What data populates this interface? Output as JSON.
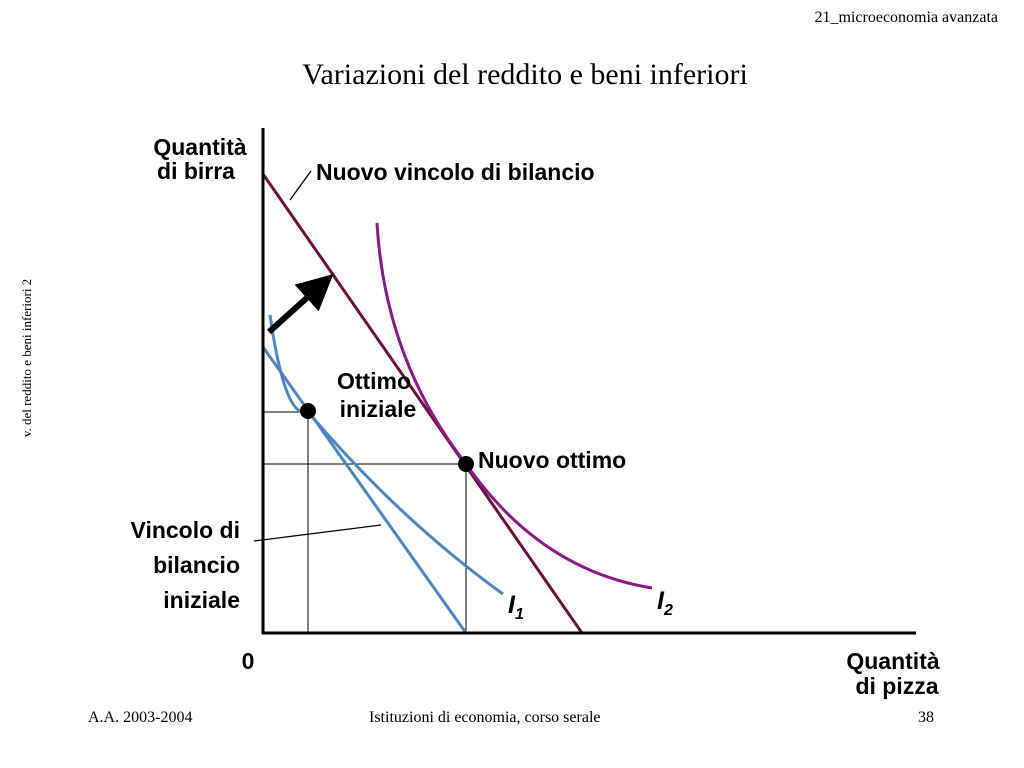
{
  "header": {
    "course": "21_microeconomia avanzata",
    "title": "Variazioni del reddito e beni inferiori"
  },
  "side_note": "v. del reddito e beni inferiori 2",
  "diagram": {
    "y_axis_label": [
      "Quantità",
      "di birra"
    ],
    "x_axis_label": [
      "Quantità",
      "di pizza"
    ],
    "origin_label": "0",
    "new_budget_label": "Nuovo vincolo di bilancio",
    "initial_optimum_label": [
      "Ottimo",
      "iniziale"
    ],
    "new_optimum_label": "Nuovo ottimo",
    "initial_budget_label": [
      "Vincolo di",
      "bilancio",
      "iniziale"
    ],
    "curve_i1": {
      "letter": "I",
      "subscript": "1"
    },
    "curve_i2": {
      "letter": "I",
      "subscript": "2"
    },
    "colors": {
      "initial_budget": "#4f86c0",
      "indifference_i1": "#4f86c0",
      "new_budget": "#6b0f3f",
      "indifference_i2": "#8b1a8b",
      "axes": "#000000",
      "shift_arrow": "#000000"
    }
  },
  "footer": {
    "left": "A.A. 2003-2004",
    "center": "Istituzioni di economia, corso serale",
    "page": "38"
  }
}
